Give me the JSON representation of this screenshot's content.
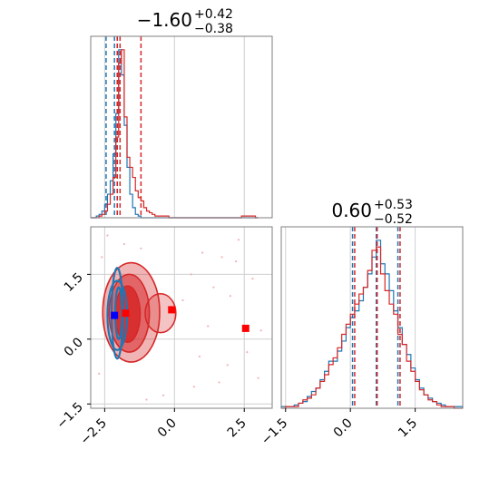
{
  "chart_data": [
    {
      "type": "histogram",
      "panel": "param1-marginal",
      "title": {
        "main": "−1.60",
        "sup": "+0.42",
        "sub": "−0.38"
      },
      "xlim": [
        -3.0,
        3.5
      ],
      "bin_edges": [
        -3.0,
        -2.9,
        -2.8,
        -2.7,
        -2.6,
        -2.5,
        -2.4,
        -2.3,
        -2.2,
        -2.1,
        -2.0,
        -1.9,
        -1.8,
        -1.7,
        -1.6,
        -1.5,
        -1.4,
        -1.3,
        -1.2,
        -1.1,
        -1.0,
        -0.9,
        -0.8,
        -0.7,
        -0.6,
        -0.5,
        -0.4,
        -0.3,
        -0.2,
        -0.1,
        0.0,
        0.1,
        0.2,
        0.3,
        0.4,
        0.5,
        0.6,
        0.7,
        0.8,
        0.9,
        1.0,
        1.1,
        1.2,
        1.3,
        1.4,
        1.5,
        1.6,
        1.7,
        1.8,
        1.9,
        2.0,
        2.1,
        2.2,
        2.3,
        2.4,
        2.5,
        2.6,
        2.7,
        2.8,
        2.9,
        3.0
      ],
      "series": [
        {
          "color": "#1f77b4",
          "values": [
            0,
            0,
            1,
            2,
            4,
            8,
            14,
            22,
            38,
            62,
            100,
            85,
            55,
            30,
            14,
            6,
            2,
            1,
            0,
            0,
            0,
            0,
            0,
            0,
            0,
            0,
            0,
            0,
            0,
            0,
            0,
            0,
            0,
            0,
            0,
            0,
            0,
            0,
            0,
            0,
            0,
            0,
            0,
            0,
            0,
            0,
            0,
            0,
            0,
            0,
            0,
            0,
            0,
            0,
            0,
            0,
            0,
            0,
            0,
            0
          ],
          "quantiles": [
            -2.45,
            -2.15,
            -2.05
          ]
        },
        {
          "color": "#d62728",
          "values": [
            0,
            0,
            0,
            1,
            2,
            4,
            8,
            14,
            24,
            48,
            92,
            100,
            60,
            36,
            30,
            24,
            16,
            12,
            10,
            6,
            4,
            3,
            2,
            1,
            1,
            1,
            1,
            1,
            0,
            0,
            0,
            0,
            0,
            0,
            0,
            0,
            0,
            0,
            0,
            0,
            0,
            0,
            0,
            0,
            0,
            0,
            0,
            0,
            0,
            0,
            0,
            0,
            0,
            0,
            1,
            1,
            1,
            1,
            1,
            0
          ],
          "quantiles": [
            -2.05,
            -1.95,
            -1.2
          ]
        }
      ]
    },
    {
      "type": "histogram",
      "panel": "param2-marginal",
      "title": {
        "main": "0.60",
        "sup": "+0.53",
        "sub": "−0.52"
      },
      "xlim": [
        -1.6,
        2.6
      ],
      "xticks": [
        -1.5,
        0.0,
        1.5
      ],
      "xticklabels": [
        "−1.5",
        "0.0",
        "1.5"
      ],
      "bin_edges": [
        -1.6,
        -1.5,
        -1.4,
        -1.3,
        -1.2,
        -1.1,
        -1.0,
        -0.9,
        -0.8,
        -0.7,
        -0.6,
        -0.5,
        -0.4,
        -0.3,
        -0.2,
        -0.1,
        0.0,
        0.1,
        0.2,
        0.3,
        0.4,
        0.5,
        0.6,
        0.7,
        0.8,
        0.9,
        1.0,
        1.1,
        1.2,
        1.3,
        1.4,
        1.5,
        1.6,
        1.7,
        1.8,
        1.9,
        2.0,
        2.1,
        2.2,
        2.3,
        2.4,
        2.5,
        2.6
      ],
      "series": [
        {
          "color": "#1f77b4",
          "values": [
            1,
            1,
            1,
            2,
            3,
            4,
            7,
            10,
            12,
            17,
            22,
            28,
            28,
            34,
            40,
            48,
            54,
            58,
            64,
            72,
            80,
            90,
            100,
            86,
            80,
            70,
            58,
            48,
            38,
            32,
            24,
            17,
            12,
            8,
            6,
            4,
            3,
            2,
            1,
            1,
            1,
            1
          ],
          "quantiles": [
            0.05,
            0.6,
            1.1
          ]
        },
        {
          "color": "#d62728",
          "values": [
            0,
            1,
            1,
            1,
            3,
            5,
            6,
            8,
            12,
            16,
            20,
            26,
            30,
            36,
            44,
            50,
            56,
            62,
            68,
            72,
            82,
            94,
            96,
            80,
            70,
            62,
            56,
            44,
            38,
            28,
            22,
            16,
            11,
            8,
            5,
            4,
            2,
            1,
            1,
            1,
            0,
            0
          ],
          "quantiles": [
            0.1,
            0.62,
            1.15
          ]
        }
      ]
    },
    {
      "type": "scatter-contour",
      "panel": "param1-vs-param2",
      "xlim": [
        -3.0,
        3.5
      ],
      "ylim": [
        -1.6,
        2.6
      ],
      "xticks": [
        -2.5,
        0.0,
        2.5
      ],
      "xticklabels": [
        "−2.5",
        "0.0",
        "2.5"
      ],
      "yticks": [
        -1.5,
        0.0,
        1.5
      ],
      "yticklabels": [
        "−1.5",
        "0.0",
        "1.5"
      ],
      "red_levels": [
        {
          "cx": -1.55,
          "cy": 0.62,
          "rx": 1.02,
          "ry": 1.15,
          "opacity": 0.35
        },
        {
          "cx": -1.62,
          "cy": 0.6,
          "rx": 0.72,
          "ry": 0.9,
          "opacity": 0.55
        },
        {
          "cx": -1.68,
          "cy": 0.58,
          "rx": 0.45,
          "ry": 0.65,
          "opacity": 0.85
        }
      ],
      "red_outer_lobe": {
        "cx": -0.5,
        "cy": 0.6,
        "rx": 0.55,
        "ry": 0.45
      },
      "blue_levels": [
        {
          "cx": -2.05,
          "cy": 0.6,
          "rx": 0.2,
          "ry": 1.05
        },
        {
          "cx": -2.05,
          "cy": 0.55,
          "rx": 0.35,
          "ry": 0.8
        },
        {
          "cx": -2.0,
          "cy": 0.6,
          "rx": 0.12,
          "ry": 0.6
        }
      ],
      "markers": [
        {
          "x": -2.15,
          "y": 0.55,
          "color": "#0000ff"
        },
        {
          "x": -1.75,
          "y": 0.6,
          "color": "#ff0000"
        },
        {
          "x": -0.1,
          "y": 0.68,
          "color": "#ff0000"
        },
        {
          "x": 2.55,
          "y": 0.25,
          "color": "#ff0000"
        }
      ],
      "scatter_points": [
        [
          -2.4,
          2.4
        ],
        [
          -1.8,
          2.2
        ],
        [
          -1.2,
          2.1
        ],
        [
          1.7,
          1.9
        ],
        [
          2.2,
          1.8
        ],
        [
          1.4,
          1.2
        ],
        [
          0.6,
          1.5
        ],
        [
          2.0,
          1.0
        ],
        [
          3.1,
          0.2
        ],
        [
          2.6,
          -0.3
        ],
        [
          1.9,
          -0.6
        ],
        [
          0.9,
          -0.4
        ],
        [
          -0.4,
          -1.3
        ],
        [
          -1.0,
          -1.4
        ],
        [
          -2.7,
          -0.8
        ],
        [
          2.8,
          1.4
        ],
        [
          1.2,
          0.3
        ],
        [
          0.3,
          0.9
        ],
        [
          0.7,
          -1.1
        ],
        [
          1.6,
          -1.0
        ],
        [
          -2.6,
          1.9
        ],
        [
          2.3,
          2.3
        ],
        [
          3.0,
          -0.9
        ],
        [
          1.0,
          2.0
        ]
      ],
      "gridlines": {
        "x": [
          -2.5,
          0.0,
          2.5
        ],
        "y": [
          -1.5,
          0.0,
          1.5
        ]
      }
    }
  ]
}
